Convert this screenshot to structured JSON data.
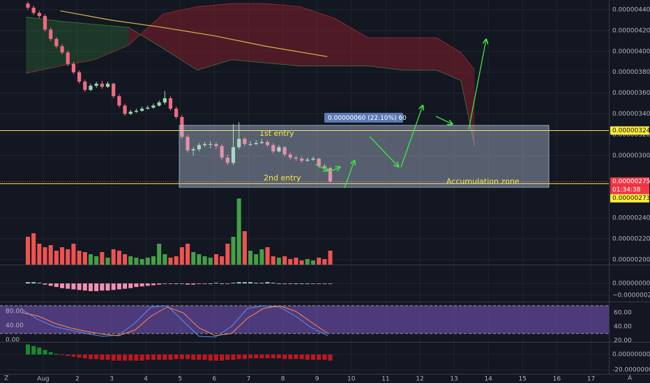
{
  "chart_data": {
    "type": "candlestick",
    "xlim": [
      -0.26,
      17.52
    ],
    "xticks": [
      {
        "value": 1,
        "label": "Aug"
      },
      2,
      3,
      4,
      5,
      6,
      7,
      8,
      9,
      10,
      11,
      12,
      13,
      14,
      15,
      16,
      17
    ],
    "ylim": [
      1.952e-06,
      4.494e-06
    ],
    "yticks": [
      {
        "value": 4.4e-06,
        "label": "0.00000440"
      },
      {
        "value": 4.2e-06,
        "label": "0.00000420"
      },
      {
        "value": 4e-06,
        "label": "0.00000400"
      },
      {
        "value": 3.8e-06,
        "label": "0.00000380"
      },
      {
        "value": 3.6e-06,
        "label": "0.00000360"
      },
      {
        "value": 3.4e-06,
        "label": "0.00000340"
      },
      {
        "value": 3.2e-06,
        "label": "0.00000320"
      },
      {
        "value": 3e-06,
        "label": "0.00000300"
      },
      {
        "value": 2.4e-06,
        "label": "0.00000240"
      },
      {
        "value": 2.2e-06,
        "label": "0.00000220"
      },
      {
        "value": 2e-06,
        "label": "0.00000200"
      }
    ],
    "grid": true,
    "colors": {
      "up": "#9ad9b0",
      "down": "#ef6b80"
    },
    "candles": [
      [
        4.46e-06,
        4.48e-06,
        4.4e-06,
        4.42e-06
      ],
      [
        4.42e-06,
        4.44e-06,
        4.35e-06,
        4.37e-06
      ],
      [
        4.37e-06,
        4.39e-06,
        4.32e-06,
        4.34e-06
      ],
      [
        4.34e-06,
        4.36e-06,
        4.19e-06,
        4.21e-06
      ],
      [
        4.21e-06,
        4.23e-06,
        4.1e-06,
        4.12e-06
      ],
      [
        4.12e-06,
        4.14e-06,
        4.03e-06,
        4.05e-06
      ],
      [
        4.05e-06,
        4.07e-06,
        3.97e-06,
        3.99e-06
      ],
      [
        3.99e-06,
        4.01e-06,
        3.86e-06,
        3.88e-06
      ],
      [
        3.88e-06,
        3.9e-06,
        3.78e-06,
        3.8e-06
      ],
      [
        3.8e-06,
        3.82e-06,
        3.69e-06,
        3.71e-06
      ],
      [
        3.71e-06,
        3.73e-06,
        3.61e-06,
        3.63e-06
      ],
      [
        3.63e-06,
        3.69e-06,
        3.62e-06,
        3.67e-06
      ],
      [
        3.67e-06,
        3.71e-06,
        3.65e-06,
        3.69e-06
      ],
      [
        3.69e-06,
        3.72e-06,
        3.64e-06,
        3.66e-06
      ],
      [
        3.66e-06,
        3.71e-06,
        3.65e-06,
        3.69e-06
      ],
      [
        3.69e-06,
        3.7e-06,
        3.55e-06,
        3.57e-06
      ],
      [
        3.57e-06,
        3.59e-06,
        3.46e-06,
        3.48e-06
      ],
      [
        3.48e-06,
        3.5e-06,
        3.38e-06,
        3.4e-06
      ],
      [
        3.4e-06,
        3.44e-06,
        3.39e-06,
        3.42e-06
      ],
      [
        3.42e-06,
        3.45e-06,
        3.41e-06,
        3.43e-06
      ],
      [
        3.43e-06,
        3.47e-06,
        3.42e-06,
        3.45e-06
      ],
      [
        3.45e-06,
        3.48e-06,
        3.44e-06,
        3.46e-06
      ],
      [
        3.46e-06,
        3.5e-06,
        3.45e-06,
        3.48e-06
      ],
      [
        3.48e-06,
        3.53e-06,
        3.47e-06,
        3.51e-06
      ],
      [
        3.51e-06,
        3.62e-06,
        3.49e-06,
        3.55e-06
      ],
      [
        3.55e-06,
        3.57e-06,
        3.43e-06,
        3.45e-06
      ],
      [
        3.45e-06,
        3.47e-06,
        3.35e-06,
        3.37e-06
      ],
      [
        3.37e-06,
        3.39e-06,
        3.16e-06,
        3.18e-06
      ],
      [
        3.18e-06,
        3.2e-06,
        3.03e-06,
        3.05e-06
      ],
      [
        3.05e-06,
        3.08e-06,
        3e-06,
        3.06e-06
      ],
      [
        3.06e-06,
        3.12e-06,
        3.04e-06,
        3.1e-06
      ],
      [
        3.1e-06,
        3.13e-06,
        3.08e-06,
        3.11e-06
      ],
      [
        3.11e-06,
        3.14e-06,
        3.07e-06,
        3.11e-06
      ],
      [
        3.11e-06,
        3.13e-06,
        3.06e-06,
        3.09e-06
      ],
      [
        3.09e-06,
        3.11e-06,
        2.96e-06,
        2.98e-06
      ],
      [
        2.98e-06,
        3.01e-06,
        2.91e-06,
        2.93e-06
      ],
      [
        2.93e-06,
        3.3e-06,
        2.91e-06,
        3.08e-06
      ],
      [
        3.08e-06,
        3.32e-06,
        3.06e-06,
        3.16e-06
      ],
      [
        3.16e-06,
        3.18e-06,
        3.09e-06,
        3.11e-06
      ],
      [
        3.11e-06,
        3.14e-06,
        3.09e-06,
        3.11e-06
      ],
      [
        3.11e-06,
        3.15e-06,
        3.1e-06,
        3.12e-06
      ],
      [
        3.12e-06,
        3.16e-06,
        3.11e-06,
        3.13e-06
      ],
      [
        3.13e-06,
        3.15e-06,
        3.08e-06,
        3.1e-06
      ],
      [
        3.1e-06,
        3.12e-06,
        3.02e-06,
        3.04e-06
      ],
      [
        3.04e-06,
        3.1e-06,
        3.03e-06,
        3.08e-06
      ],
      [
        3.08e-06,
        3.09e-06,
        2.99e-06,
        3.01e-06
      ],
      [
        3.01e-06,
        3.03e-06,
        2.96e-06,
        2.98e-06
      ],
      [
        2.98e-06,
        3e-06,
        2.95e-06,
        2.97e-06
      ],
      [
        2.97e-06,
        2.99e-06,
        2.93e-06,
        2.95e-06
      ],
      [
        2.95e-06,
        2.98e-06,
        2.94e-06,
        2.96e-06
      ],
      [
        2.96e-06,
        2.99e-06,
        2.95e-06,
        2.97e-06
      ],
      [
        2.97e-06,
        2.98e-06,
        2.88e-06,
        2.9e-06
      ],
      [
        2.9e-06,
        2.92e-06,
        2.86e-06,
        2.88e-06
      ],
      [
        2.88e-06,
        2.89e-06,
        2.74e-06,
        2.75e-06
      ]
    ],
    "volume": {
      "lim": [
        0,
        100
      ],
      "colors": {
        "up": "#43a047",
        "down": "#ef5350"
      },
      "values": [
        40,
        45,
        30,
        25,
        28,
        20,
        25,
        22,
        30,
        20,
        18,
        15,
        12,
        18,
        10,
        22,
        20,
        15,
        12,
        10,
        8,
        10,
        12,
        30,
        15,
        10,
        12,
        25,
        30,
        18,
        15,
        12,
        10,
        15,
        12,
        30,
        40,
        95,
        48,
        20,
        15,
        22,
        25,
        12,
        10,
        12,
        8,
        10,
        6,
        8,
        6,
        10,
        8,
        20
      ]
    },
    "moving_average": {
      "color": "#d9b54a",
      "x": [
        1.5,
        3,
        4.5,
        6,
        7.5,
        9.3
      ],
      "values": [
        4.39e-06,
        4.3e-06,
        4.23e-06,
        4.15e-06,
        4.05e-06,
        3.95e-06
      ]
    },
    "cloud": {
      "colors": {
        "bull": "rgba(56,142,60,0.28)",
        "bear": "rgba(150,30,45,0.45)"
      },
      "x": [
        0.5,
        1.5,
        2.5,
        3.5,
        4.5,
        5.5,
        6.5,
        7.5,
        8.5,
        9.5,
        10.5,
        11.5,
        12.5,
        13.2,
        13.6
      ],
      "span_a": [
        4.33e-06,
        4.29e-06,
        4.26e-06,
        4.23e-06,
        4.03e-06,
        3.82e-06,
        3.92e-06,
        3.89e-06,
        3.86e-06,
        3.86e-06,
        3.86e-06,
        3.82e-06,
        3.82e-06,
        3.72e-06,
        3.09e-06
      ],
      "span_b": [
        3.79e-06,
        3.86e-06,
        3.92e-06,
        4.06e-06,
        4.36e-06,
        4.43e-06,
        4.46e-06,
        4.46e-06,
        4.43e-06,
        4.32e-06,
        4.13e-06,
        4.13e-06,
        4.13e-06,
        3.99e-06,
        3.82e-06
      ]
    },
    "hlines": [
      {
        "value": 3.24e-06,
        "label": "0.00000324",
        "color": "#ffeb3b"
      },
      {
        "value": 2.73e-06,
        "label": "0.00000273",
        "color": "#ffeb3b"
      }
    ],
    "last_price": {
      "value": 2.75e-06,
      "label": "0.00000275",
      "countdown": "01:34:38",
      "color": "#f23645"
    },
    "annotations": {
      "first_entry": "1st entry",
      "second_entry": "2nd entry",
      "zone": "Accumulation zone",
      "measure": "0.00000060 (22.10%) 60"
    },
    "macd": {
      "type": "bar",
      "ylim": [
        -2.94e-07,
        2.94e-07
      ],
      "yticks": [
        {
          "value": 0,
          "label": "0.00000000"
        },
        {
          "value": -2e-07,
          "label": "−0.00000020"
        }
      ],
      "colors": {
        "up": "#b2dfdb",
        "down": "#f48fb1"
      },
      "values": [
        2e-08,
        2e-08,
        1e-08,
        -2e-08,
        -4e-08,
        -6e-08,
        -8e-08,
        -9e-08,
        -1e-07,
        -1.1e-07,
        -1.2e-07,
        -1.3e-07,
        -1.3e-07,
        -1.2e-07,
        -1.2e-07,
        -1.1e-07,
        -1e-07,
        -9e-08,
        -8e-08,
        -6e-08,
        -5e-08,
        -4e-08,
        -3e-08,
        -2e-08,
        -1e-08,
        -1e-08,
        0,
        -1e-08,
        -2e-08,
        -2e-08,
        -1e-08,
        -1e-08,
        0,
        1e-08,
        0,
        -1e-08,
        1e-08,
        2e-08,
        2e-08,
        2e-08,
        1e-08,
        1e-08,
        2e-08,
        1e-08,
        0,
        -1e-08,
        -1e-08,
        0,
        0,
        0,
        -1e-08,
        -1e-08,
        -1e-08,
        -1e-08
      ]
    },
    "stoch": {
      "type": "line",
      "ylim": [
        -7.8,
        103.4
      ],
      "yticks": [
        {
          "value": 80,
          "label": "80.00"
        },
        {
          "value": 40,
          "label": "40.00"
        },
        {
          "value": 0,
          "label": "0.00"
        }
      ],
      "y2lim": [
        17,
        74
      ],
      "y2ticks": [
        {
          "value": 60,
          "label": "60.00"
        },
        {
          "value": 40,
          "label": "40.00"
        },
        {
          "value": 20,
          "label": "20.00"
        }
      ],
      "band": [
        30,
        70
      ],
      "band_color": "rgba(126,87,194,0.55)",
      "series": [
        {
          "color": "#5b8def",
          "axis": "y2",
          "values": [
            64,
            50,
            40,
            35,
            30,
            26,
            28,
            45,
            68,
            70,
            48,
            26,
            25,
            40,
            66,
            70,
            68,
            55,
            38,
            27
          ]
        },
        {
          "color": "#ff8a50",
          "axis": "y2",
          "values": [
            60,
            55,
            45,
            38,
            33,
            29,
            27,
            35,
            55,
            68,
            60,
            38,
            27,
            30,
            52,
            66,
            70,
            62,
            46,
            30
          ]
        }
      ]
    },
    "histogram": {
      "type": "bar",
      "ylim": [
        -23.6,
        15.5
      ],
      "yticks": [
        {
          "value": 0,
          "label": "0.00000000"
        },
        {
          "value": -20,
          "label": "-20.00000000"
        }
      ],
      "colors": {
        "up": "#1b8a2e",
        "down": "#c0161d"
      },
      "values": [
        13,
        11,
        9,
        6,
        3,
        1,
        -1,
        -2,
        -3,
        -4,
        -5,
        -6,
        -6,
        -7,
        -7,
        -8,
        -8,
        -8,
        -8,
        -8,
        -8,
        -7,
        -7,
        -7,
        -7,
        -7,
        -6,
        -6,
        -6,
        -7,
        -7,
        -7,
        -8,
        -8,
        -8,
        -7,
        -7,
        -6,
        -6,
        -5,
        -5,
        -5,
        -5,
        -5,
        -5,
        -6,
        -6,
        -6,
        -6,
        -7,
        -7,
        -7,
        -7,
        -8
      ]
    },
    "corner_labels": [
      "Z",
      "A"
    ]
  }
}
